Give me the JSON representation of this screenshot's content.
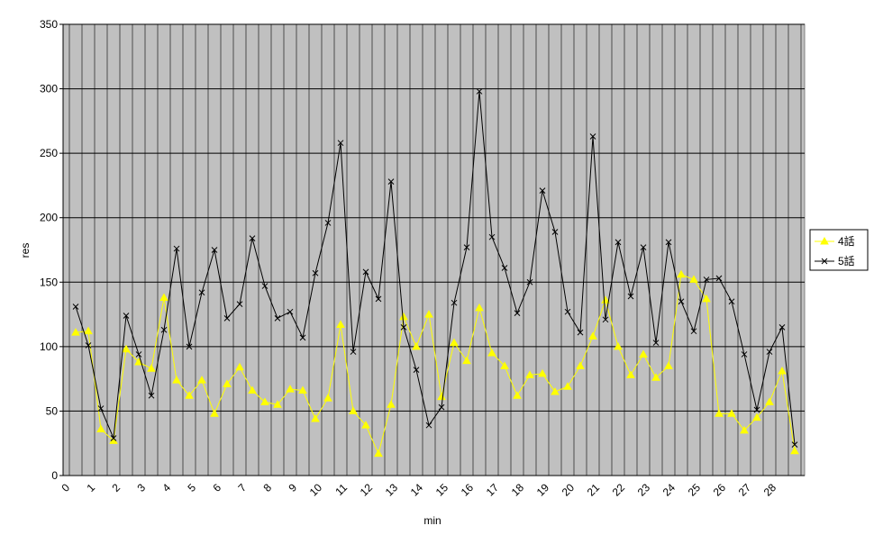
{
  "chart_data": {
    "type": "line",
    "x_label": "min",
    "y_label": "res",
    "categories": [
      "0",
      null,
      "1",
      null,
      "2",
      null,
      "3",
      null,
      "4",
      null,
      "5",
      null,
      "6",
      null,
      "7",
      null,
      "8",
      null,
      "9",
      null,
      "10",
      null,
      "11",
      null,
      "12",
      null,
      "13",
      null,
      "14",
      null,
      "15",
      null,
      "16",
      null,
      "17",
      null,
      "18",
      null,
      "19",
      null,
      "20",
      null,
      "21",
      null,
      "22",
      null,
      "23",
      null,
      "24",
      null,
      "25",
      null,
      "26",
      null,
      "27",
      null,
      "28",
      null
    ],
    "series": [
      {
        "name": "4話",
        "color": "#ffff00",
        "marker": "triangle",
        "values": [
          111,
          112,
          36,
          27,
          98,
          88,
          83,
          138,
          74,
          62,
          74,
          48,
          71,
          84,
          66,
          57,
          55,
          67,
          66,
          44,
          60,
          117,
          50,
          39,
          17,
          55,
          123,
          100,
          125,
          61,
          103,
          89,
          130,
          95,
          85,
          62,
          78,
          79,
          65,
          69,
          85,
          108,
          136,
          100,
          78,
          94,
          76,
          85,
          156,
          152,
          137,
          48,
          48,
          35,
          45,
          57,
          81,
          19
        ]
      },
      {
        "name": "5話",
        "color": "#000000",
        "marker": "x",
        "values": [
          131,
          101,
          52,
          29,
          124,
          94,
          62,
          113,
          176,
          100,
          142,
          175,
          122,
          133,
          184,
          147,
          122,
          127,
          107,
          157,
          196,
          258,
          96,
          158,
          137,
          228,
          115,
          82,
          39,
          53,
          134,
          177,
          298,
          185,
          161,
          126,
          150,
          221,
          189,
          127,
          111,
          263,
          121,
          181,
          139,
          177,
          103,
          181,
          135,
          112,
          152,
          153,
          135,
          94,
          51,
          96,
          115,
          24
        ]
      }
    ],
    "ylim": [
      0,
      350
    ],
    "yticks": [
      0,
      50,
      100,
      150,
      200,
      250,
      300,
      350
    ],
    "grid": true,
    "legend": "right"
  }
}
